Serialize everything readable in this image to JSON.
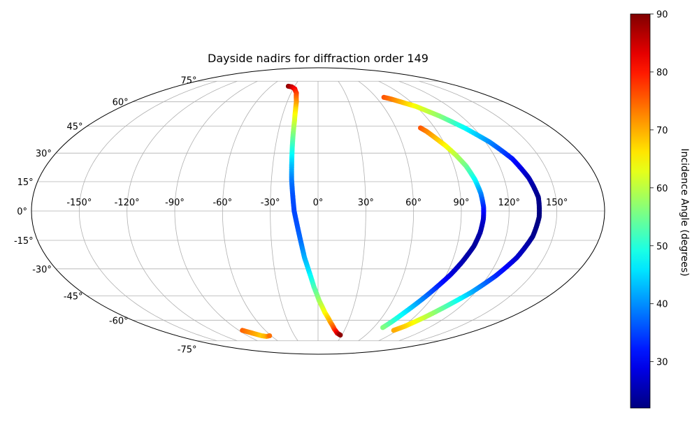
{
  "chart_data": {
    "type": "scatter",
    "projection": "mollweide",
    "title": "Dayside nadirs for diffraction order 149",
    "grid": true,
    "lon_ticks": [
      "-150°",
      "-120°",
      "-90°",
      "-60°",
      "-30°",
      "0°",
      "30°",
      "60°",
      "90°",
      "120°",
      "150°"
    ],
    "lat_ticks": [
      "75°",
      "60°",
      "45°",
      "30°",
      "15°",
      "0°",
      "-15°",
      "-30°",
      "-45°",
      "-60°",
      "-75°"
    ],
    "colorbar": {
      "label": "Incidence Angle (degrees)",
      "colormap": "jet",
      "min": 22,
      "max": 90,
      "ticks": [
        "30",
        "40",
        "50",
        "60",
        "70",
        "80",
        "90"
      ]
    },
    "series": [
      {
        "points": [
          {
            "lon": -38,
            "lat": 71,
            "angle": 89
          },
          {
            "lon": -33,
            "lat": 70.5,
            "angle": 86
          },
          {
            "lon": -28,
            "lat": 69,
            "angle": 82
          },
          {
            "lon": -24,
            "lat": 66,
            "angle": 78
          },
          {
            "lon": -21,
            "lat": 60,
            "angle": 72
          },
          {
            "lon": -20,
            "lat": 55,
            "angle": 67
          },
          {
            "lon": -19,
            "lat": 48,
            "angle": 62
          },
          {
            "lon": -18.5,
            "lat": 40,
            "angle": 56
          },
          {
            "lon": -18,
            "lat": 32,
            "angle": 50
          },
          {
            "lon": -17.5,
            "lat": 24,
            "angle": 44
          },
          {
            "lon": -17,
            "lat": 16,
            "angle": 39
          },
          {
            "lon": -16,
            "lat": 8,
            "angle": 36
          },
          {
            "lon": -15,
            "lat": 0,
            "angle": 35
          },
          {
            "lon": -13,
            "lat": -8,
            "angle": 36
          },
          {
            "lon": -11,
            "lat": -16,
            "angle": 38
          },
          {
            "lon": -9,
            "lat": -24,
            "angle": 42
          },
          {
            "lon": -6,
            "lat": -32,
            "angle": 46
          },
          {
            "lon": -3,
            "lat": -40,
            "angle": 52
          },
          {
            "lon": 1,
            "lat": -48,
            "angle": 58
          },
          {
            "lon": 6,
            "lat": -55,
            "angle": 64
          },
          {
            "lon": 12,
            "lat": -61,
            "angle": 70
          },
          {
            "lon": 18,
            "lat": -66,
            "angle": 77
          },
          {
            "lon": 23,
            "lat": -69,
            "angle": 83
          },
          {
            "lon": 28,
            "lat": -70.5,
            "angle": 89
          }
        ]
      },
      {
        "points": [
          {
            "lon": 79,
            "lat": 44,
            "angle": 76
          },
          {
            "lon": 82,
            "lat": 42,
            "angle": 73
          },
          {
            "lon": 86,
            "lat": 38,
            "angle": 69
          },
          {
            "lon": 90,
            "lat": 34,
            "angle": 65
          },
          {
            "lon": 94,
            "lat": 29,
            "angle": 60
          },
          {
            "lon": 98,
            "lat": 23,
            "angle": 55
          },
          {
            "lon": 101,
            "lat": 16,
            "angle": 48
          },
          {
            "lon": 103,
            "lat": 9,
            "angle": 40
          },
          {
            "lon": 104,
            "lat": 2,
            "angle": 33
          },
          {
            "lon": 104,
            "lat": -4,
            "angle": 28
          },
          {
            "lon": 103,
            "lat": -11,
            "angle": 25
          },
          {
            "lon": 101,
            "lat": -18,
            "angle": 24
          },
          {
            "lon": 97,
            "lat": -26,
            "angle": 25
          },
          {
            "lon": 93,
            "lat": -33,
            "angle": 28
          },
          {
            "lon": 88,
            "lat": -40,
            "angle": 33
          },
          {
            "lon": 83,
            "lat": -47,
            "angle": 39
          },
          {
            "lon": 77,
            "lat": -55,
            "angle": 46
          },
          {
            "lon": 73,
            "lat": -61,
            "angle": 51
          },
          {
            "lon": 70,
            "lat": -65,
            "angle": 56
          }
        ]
      },
      {
        "points": [
          {
            "lon": 68,
            "lat": 63,
            "angle": 76
          },
          {
            "lon": 73,
            "lat": 62,
            "angle": 74
          },
          {
            "lon": 80,
            "lat": 60,
            "angle": 70
          },
          {
            "lon": 90,
            "lat": 57,
            "angle": 64
          },
          {
            "lon": 102,
            "lat": 51,
            "angle": 57
          },
          {
            "lon": 113,
            "lat": 44,
            "angle": 48
          },
          {
            "lon": 123,
            "lat": 36,
            "angle": 40
          },
          {
            "lon": 131,
            "lat": 27,
            "angle": 32
          },
          {
            "lon": 136,
            "lat": 17,
            "angle": 26
          },
          {
            "lon": 139,
            "lat": 7,
            "angle": 23
          },
          {
            "lon": 139,
            "lat": -3,
            "angle": 22
          },
          {
            "lon": 137,
            "lat": -13,
            "angle": 23
          },
          {
            "lon": 132,
            "lat": -24,
            "angle": 27
          },
          {
            "lon": 125,
            "lat": -34,
            "angle": 33
          },
          {
            "lon": 117,
            "lat": -43,
            "angle": 42
          },
          {
            "lon": 108,
            "lat": -51,
            "angle": 52
          },
          {
            "lon": 100,
            "lat": -58,
            "angle": 60
          },
          {
            "lon": 92,
            "lat": -64,
            "angle": 67
          },
          {
            "lon": 86,
            "lat": -67,
            "angle": 70
          }
        ]
      },
      {
        "points": [
          {
            "lon": -86,
            "lat": -67,
            "angle": 75
          },
          {
            "lon": -72,
            "lat": -71,
            "angle": 68
          },
          {
            "lon": -67,
            "lat": -71.5,
            "angle": 70
          },
          {
            "lon": -62,
            "lat": -71,
            "angle": 74
          }
        ]
      }
    ]
  }
}
